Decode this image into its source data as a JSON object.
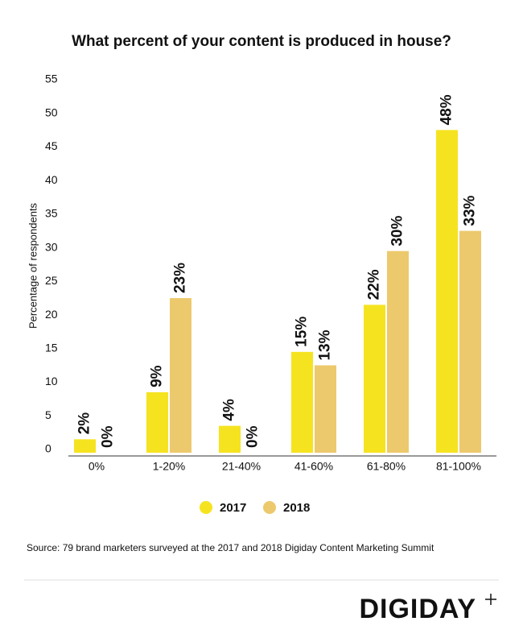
{
  "chart_data": {
    "type": "grouped_bar",
    "title": "What percent of your content is produced in house?",
    "y_label": "Percentage of respondents",
    "categories": [
      "0%",
      "1-20%",
      "21-40%",
      "41-60%",
      "61-80%",
      "81-100%"
    ],
    "series": [
      {
        "name": "2017",
        "color": "#f5e320",
        "values": [
          2,
          9,
          4,
          15,
          22,
          48
        ],
        "value_labels": [
          "2%",
          "9%",
          "4%",
          "15%",
          "22%",
          "48%"
        ]
      },
      {
        "name": "2018",
        "color": "#edc96d",
        "values": [
          0,
          23,
          0,
          13,
          30,
          33
        ],
        "value_labels": [
          "0%",
          "23%",
          "0%",
          "13%",
          "30%",
          "33%"
        ]
      }
    ],
    "ylim": [
      0,
      55
    ],
    "yticks": [
      0,
      5,
      10,
      15,
      20,
      25,
      30,
      35,
      40,
      45,
      50,
      55
    ],
    "grid": false,
    "legend": "bottom",
    "source": "Source: 79 brand marketers surveyed at the 2017 and 2018 Digiday Content Marketing Summit",
    "logo": "DIGIDAY"
  }
}
